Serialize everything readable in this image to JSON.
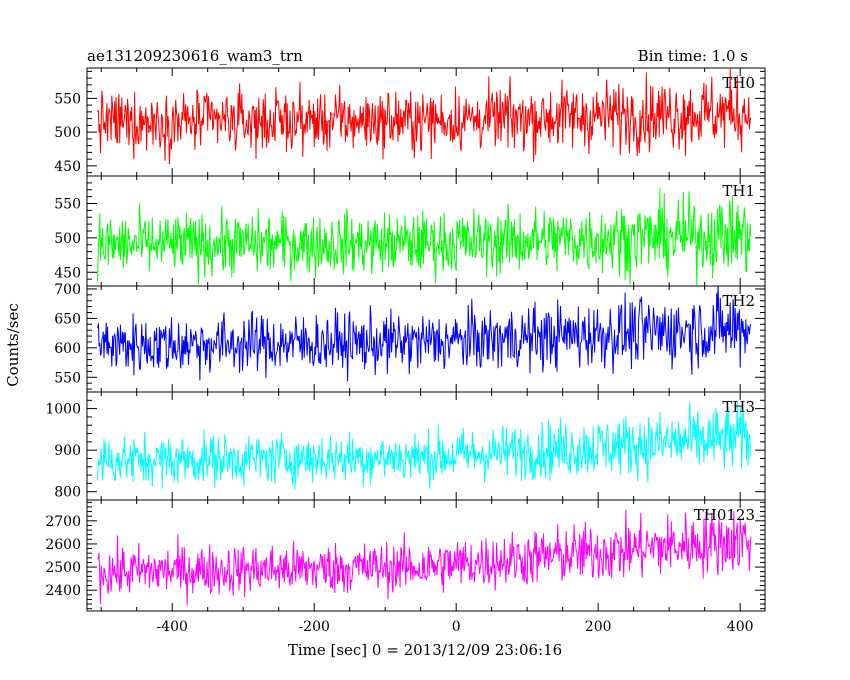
{
  "header": {
    "object": "ae131209230616_wam3_trn",
    "bin_time": "Bin time: 1.0 s"
  },
  "chart_data": {
    "type": "line",
    "xlabel": "Time [sec] 0 = 2013/12/09 23:06:16",
    "ylabel": "Counts/sec",
    "xlim": [
      -520,
      435
    ],
    "x_range": [
      -505,
      415
    ],
    "x_step": 1.0,
    "xticks": [
      -400,
      -200,
      0,
      200,
      400
    ],
    "panels": [
      {
        "name": "TH0",
        "color": "#ff0000",
        "ylim": [
          435,
          595
        ],
        "yticks": [
          450,
          500,
          550
        ],
        "mean_start": 515,
        "mean_end": 530,
        "spread": 22,
        "amp_boost": 0.25,
        "clip": true
      },
      {
        "name": "TH1",
        "color": "#00ff00",
        "ylim": [
          430,
          590
        ],
        "yticks": [
          450,
          500,
          550
        ],
        "mean_start": 490,
        "mean_end": 505,
        "spread": 22,
        "amp_boost": 0.25,
        "clip": true
      },
      {
        "name": "TH2",
        "color": "#0000ff",
        "ylim": [
          525,
          705
        ],
        "yticks": [
          550,
          600,
          650,
          700
        ],
        "mean_start": 605,
        "mean_end": 635,
        "spread": 25,
        "amp_boost": 0.25,
        "clip": true
      },
      {
        "name": "TH3",
        "color": "#00ffff",
        "ylim": [
          780,
          1040
        ],
        "yticks": [
          800,
          900,
          1000
        ],
        "mean_start": 875,
        "mean_end": 930,
        "spread": 30,
        "amp_boost": 0.35,
        "clip": true
      },
      {
        "name": "TH0123",
        "color": "#ff00ff",
        "ylim": [
          2310,
          2790
        ],
        "yticks": [
          2400,
          2500,
          2600,
          2700
        ],
        "mean_start": 2480,
        "mean_end": 2620,
        "spread": 55,
        "amp_boost": 0.3,
        "clip": true
      }
    ]
  }
}
